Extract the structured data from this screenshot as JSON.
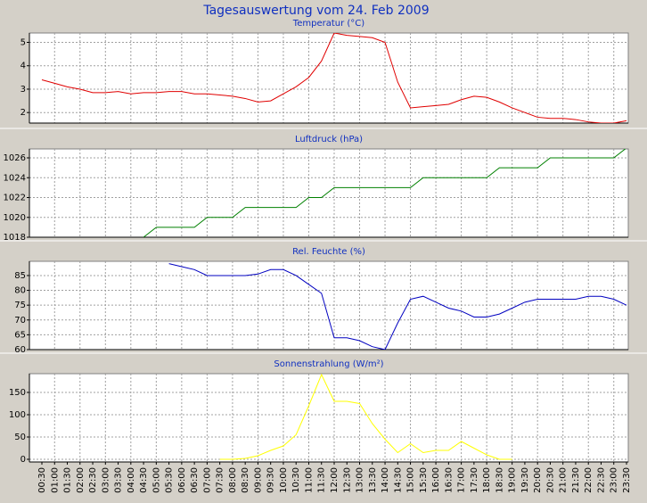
{
  "title": "Tagesauswertung vom 24. Feb 2009",
  "chart_data": [
    {
      "type": "line",
      "title": "Temperatur (°C)",
      "ylim": [
        1.55,
        5.4
      ],
      "yticks": [
        2,
        3,
        4,
        5
      ],
      "grid": true,
      "series": [
        {
          "name": "Temperatur",
          "color": "#e00000",
          "values": [
            3.4,
            3.25,
            3.1,
            3.0,
            2.85,
            2.85,
            2.9,
            2.8,
            2.85,
            2.85,
            2.9,
            2.9,
            2.8,
            2.8,
            2.75,
            2.7,
            2.6,
            2.45,
            2.5,
            2.8,
            3.1,
            3.5,
            4.2,
            5.4,
            5.3,
            5.25,
            5.2,
            5.0,
            3.3,
            2.2,
            2.25,
            2.3,
            2.35,
            2.55,
            2.7,
            2.65,
            2.45,
            2.2,
            2.0,
            1.8,
            1.75,
            1.75,
            1.7,
            1.6,
            1.55,
            1.55,
            1.65
          ]
        }
      ]
    },
    {
      "type": "line",
      "title": "Luftdruck (hPa)",
      "ylim": [
        1018,
        1026.9
      ],
      "yticks": [
        1018,
        1020,
        1022,
        1024,
        1026
      ],
      "grid": true,
      "series": [
        {
          "name": "Luftdruck",
          "color": "#008000",
          "values": [
            null,
            null,
            null,
            null,
            null,
            null,
            null,
            null,
            1018,
            1019,
            1019,
            1019,
            1019,
            1020,
            1020,
            1020,
            1021,
            1021,
            1021,
            1021,
            1021,
            1022,
            1022,
            1023,
            1023,
            1023,
            1023,
            1023,
            1023,
            1023,
            1024,
            1024,
            1024,
            1024,
            1024,
            1024,
            1025,
            1025,
            1025,
            1025,
            1026,
            1026,
            1026,
            1026,
            1026,
            1026,
            1027
          ]
        }
      ]
    },
    {
      "type": "line",
      "title": "Rel. Feuchte (%)",
      "ylim": [
        60,
        89.8
      ],
      "yticks": [
        60,
        65,
        70,
        75,
        80,
        85
      ],
      "grid": true,
      "series": [
        {
          "name": "Rel. Feuchte",
          "color": "#0000c0",
          "values": [
            null,
            null,
            null,
            null,
            null,
            null,
            null,
            null,
            null,
            null,
            89,
            88,
            87,
            85,
            85,
            85,
            85,
            85.5,
            87,
            87,
            85,
            82,
            79,
            64,
            64,
            63,
            61,
            60,
            69,
            77,
            78,
            76,
            74,
            73,
            71,
            71,
            72,
            74,
            76,
            77,
            77,
            77,
            77,
            78,
            78,
            77,
            75
          ]
        }
      ]
    },
    {
      "type": "line",
      "title": "Sonnenstrahlung (W/m²)",
      "ylim": [
        -6,
        192
      ],
      "yticks": [
        0,
        50,
        100,
        150
      ],
      "grid": true,
      "categories": [
        "00:30",
        "01:00",
        "01:30",
        "02:00",
        "02:30",
        "03:00",
        "03:30",
        "04:00",
        "04:30",
        "05:00",
        "05:30",
        "06:00",
        "06:30",
        "07:00",
        "07:30",
        "08:00",
        "08:30",
        "09:00",
        "09:30",
        "10:00",
        "10:30",
        "11:00",
        "11:30",
        "12:00",
        "12:30",
        "13:00",
        "13:30",
        "14:00",
        "14:30",
        "15:00",
        "15:30",
        "16:00",
        "16:30",
        "17:00",
        "17:30",
        "18:00",
        "18:30",
        "19:00",
        "19:30",
        "20:00",
        "20:30",
        "21:00",
        "21:30",
        "22:00",
        "22:30",
        "23:00",
        "23:30"
      ],
      "series": [
        {
          "name": "Sonnenstrahlung",
          "color": "#ffff00",
          "values": [
            null,
            null,
            null,
            null,
            null,
            null,
            null,
            null,
            null,
            null,
            null,
            null,
            null,
            null,
            0,
            0,
            2,
            8,
            20,
            30,
            55,
            120,
            190,
            130,
            130,
            125,
            80,
            45,
            15,
            35,
            15,
            20,
            20,
            40,
            25,
            10,
            0,
            0,
            null,
            null,
            null,
            null,
            null,
            null,
            null,
            null,
            null
          ]
        }
      ]
    }
  ]
}
